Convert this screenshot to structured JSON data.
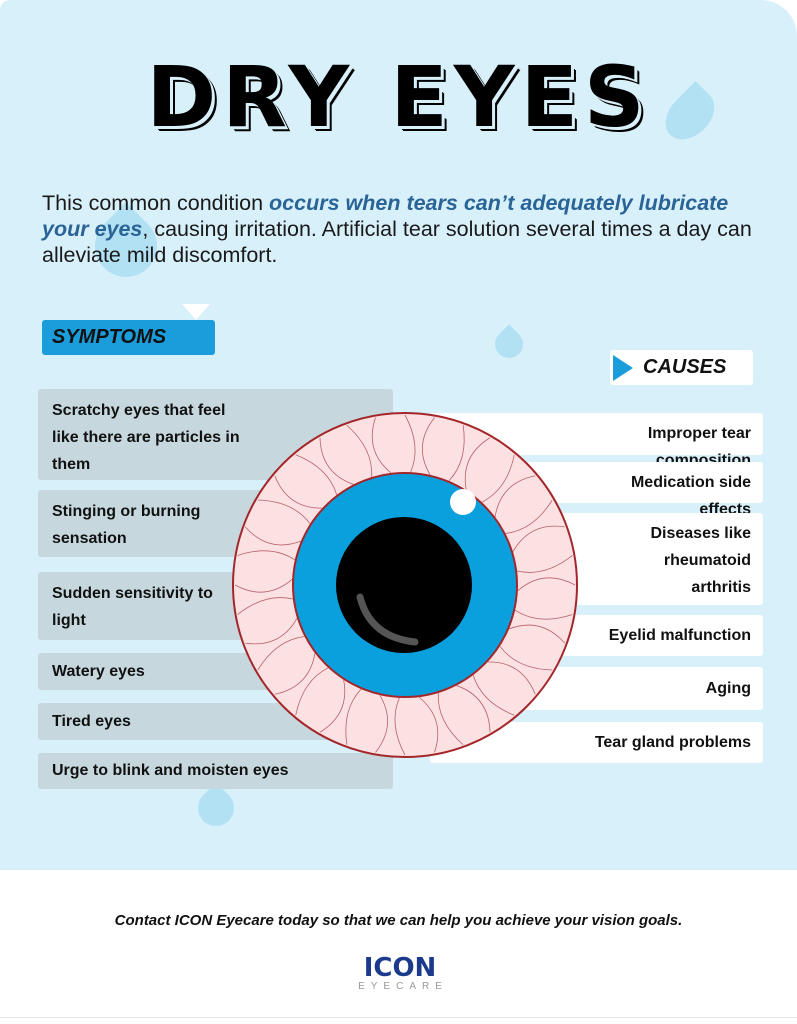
{
  "title": "DRY EYES",
  "intro": {
    "before": "This common condition ",
    "emphasis": "occurs when tears can’t adequately lubricate your eyes",
    "after": ", causing irritation. Artificial tear solution several times a day can alleviate mild discomfort."
  },
  "symptoms": {
    "label": "SYMPTOMS",
    "items": [
      "Scratchy eyes that feel like there are particles in them",
      "Stinging or burning sensation",
      "Sudden sensitivity to light",
      "Watery eyes",
      "Tired eyes",
      "Urge to blink and moisten eyes"
    ]
  },
  "causes": {
    "label": "CAUSES",
    "items": [
      "Improper tear composition",
      "Medication side effects",
      "Diseases like rheumatoid arthritis",
      "Eyelid malfunction",
      "Aging",
      "Tear gland problems"
    ]
  },
  "footer": {
    "text": "Contact ICON Eyecare today so that we can help you achieve your vision goals.",
    "logo_main": "ICON",
    "logo_sub": "EYECARE"
  },
  "colors": {
    "background": "#d8f0fa",
    "accent": "#1b9ddb",
    "iris": "#0aa0dd",
    "emphasis": "#2a6496",
    "logo": "#1c3a8c"
  }
}
